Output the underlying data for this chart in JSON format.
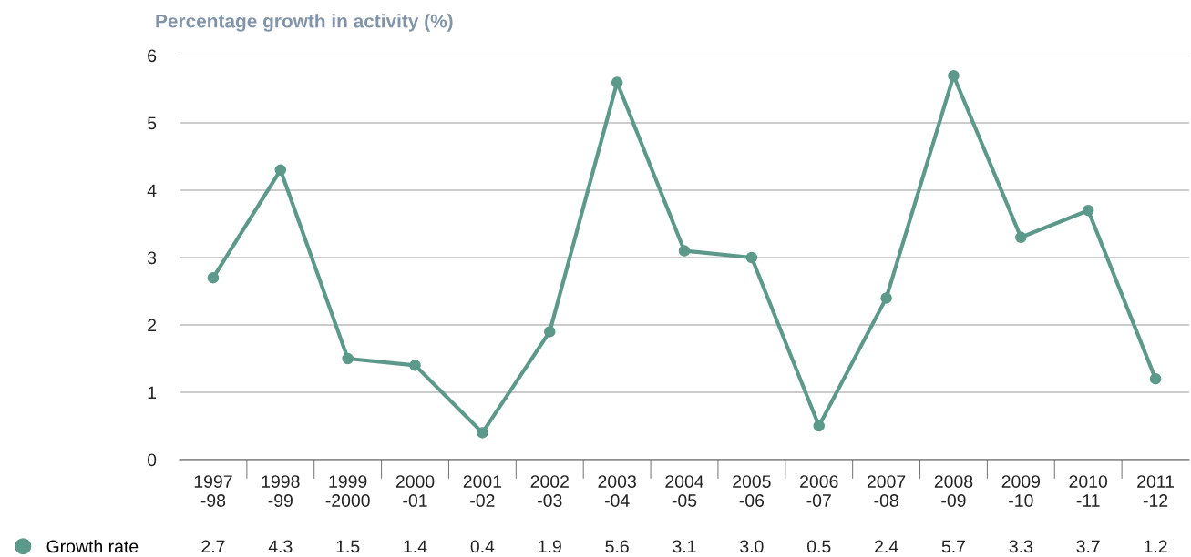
{
  "chart_data": {
    "type": "line",
    "title": "Percentage growth in activity (%)",
    "categories": [
      "1997\n-98",
      "1998\n-99",
      "1999\n-2000",
      "2000\n-01",
      "2001\n-02",
      "2002\n-03",
      "2003\n-04",
      "2004\n-05",
      "2005\n-06",
      "2006\n-07",
      "2007\n-08",
      "2008\n-09",
      "2009\n-10",
      "2010\n-11",
      "2011\n-12"
    ],
    "series": [
      {
        "name": "Growth rate",
        "color": "#5d998a",
        "values": [
          2.7,
          4.3,
          1.5,
          1.4,
          0.4,
          1.9,
          5.6,
          3.1,
          3.0,
          0.5,
          2.4,
          5.7,
          3.3,
          3.7,
          1.2
        ],
        "value_labels": [
          "2.7",
          "4.3",
          "1.5",
          "1.4",
          "0.4",
          "1.9",
          "5.6",
          "3.1",
          "3.0",
          "0.5",
          "2.4",
          "5.7",
          "3.3",
          "3.7",
          "1.2"
        ]
      }
    ],
    "ylim": [
      0,
      6
    ],
    "yticks": [
      0,
      1,
      2,
      3,
      4,
      5,
      6
    ],
    "grid": "y",
    "legend": "bottom left",
    "marker": "circle",
    "line_style": "solid"
  }
}
